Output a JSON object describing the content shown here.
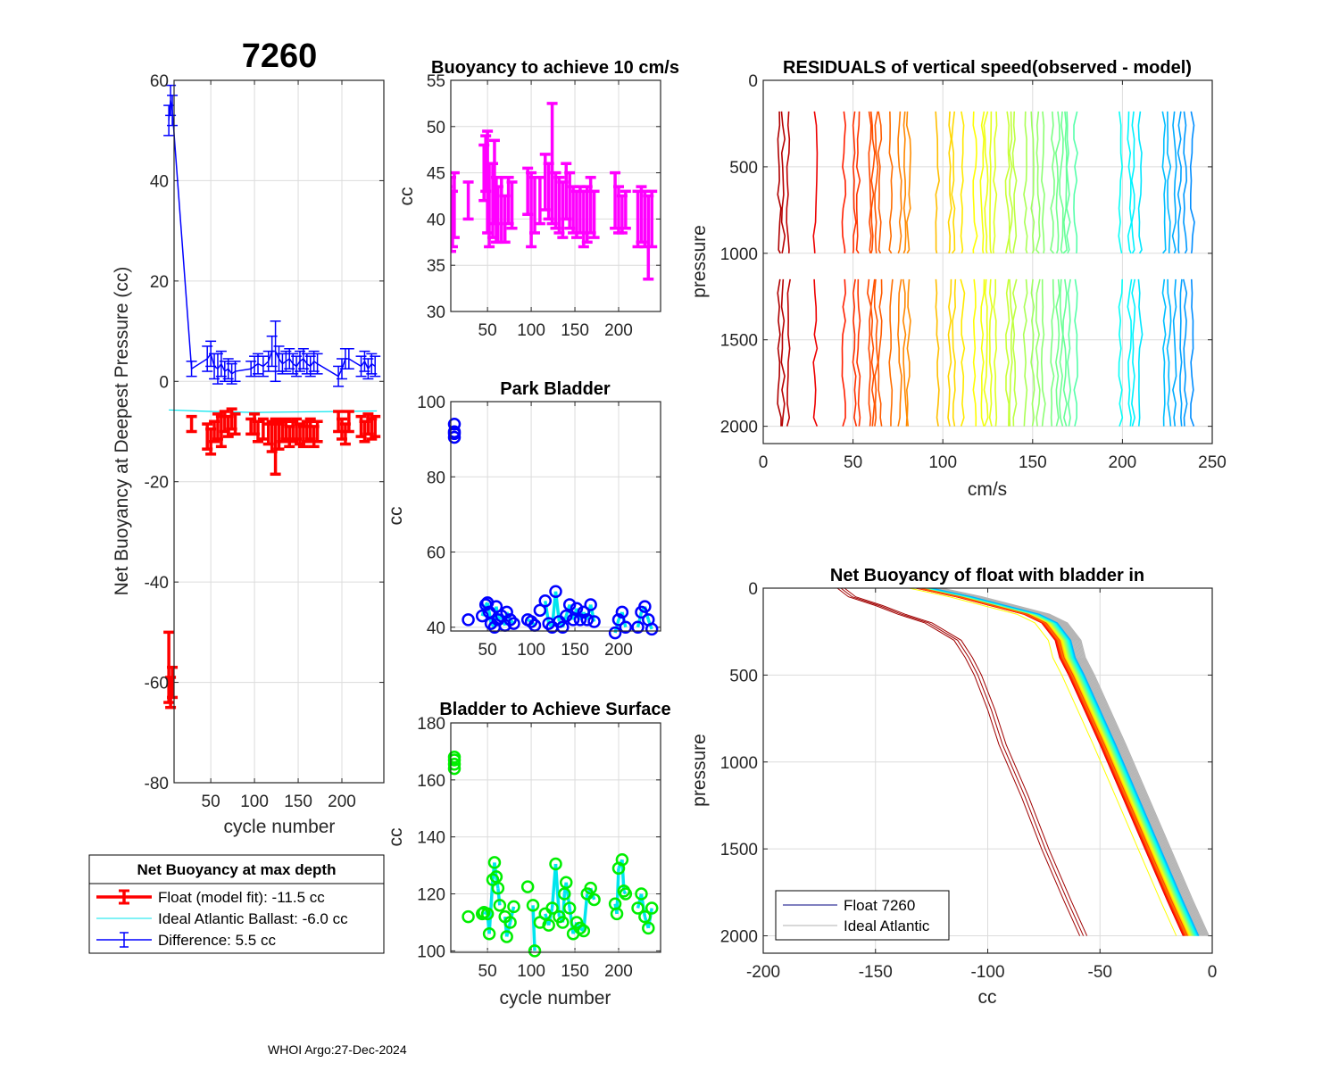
{
  "figure": {
    "title": "7260",
    "footer": "WHOI Argo:27-Dec-2024"
  },
  "chart_data": [
    {
      "id": "net_buoyancy_deepest",
      "type": "errorbar-line",
      "title": "7260",
      "xlabel": "cycle number",
      "ylabel": "Net Buoyancy at Deepest Pressure (cc)",
      "xlim": [
        8,
        248
      ],
      "ylim": [
        -80,
        60
      ],
      "xticks": [
        50,
        100,
        150,
        200
      ],
      "yticks": [
        -80,
        -60,
        -40,
        -20,
        0,
        20,
        40,
        60
      ],
      "grid": true,
      "legend": {
        "title": "Net Buoyancy at max depth",
        "placement": "below",
        "entries": [
          {
            "label": "Float (model fit): -11.5 cc",
            "color": "#ff0000"
          },
          {
            "label": "Ideal Atlantic Ballast:  -6.0 cc",
            "color": "#00e5ee"
          },
          {
            "label": "Difference:   5.5 cc",
            "color": "#0000ff"
          }
        ]
      },
      "series": [
        {
          "name": "Float (model fit)",
          "color": "#ff0000",
          "x": [
            2,
            4,
            6,
            28,
            46,
            50,
            54,
            58,
            62,
            66,
            70,
            74,
            78,
            96,
            100,
            104,
            110,
            116,
            120,
            124,
            128,
            132,
            136,
            140,
            144,
            148,
            152,
            156,
            160,
            164,
            168,
            172,
            196,
            200,
            204,
            208,
            222,
            226,
            230,
            234,
            238
          ],
          "y": [
            -57,
            -62,
            -60,
            -8.5,
            -11,
            -12,
            -10,
            -9,
            -10,
            -8,
            -9,
            -7.5,
            -8.5,
            -9,
            -8.5,
            -10,
            -9.5,
            -10.5,
            -11,
            -13,
            -11,
            -10,
            -9.5,
            -11,
            -10,
            -9.5,
            -10.5,
            -11,
            -10,
            -9.5,
            -11,
            -10,
            -8,
            -9.5,
            -10.5,
            -8,
            -9,
            -10,
            -8.5,
            -9.5,
            -9
          ],
          "err": [
            7,
            3,
            3,
            1.5,
            2.5,
            2.5,
            2,
            2.5,
            3,
            2,
            2,
            2,
            2,
            1.5,
            2,
            2,
            2,
            2,
            3,
            5.5,
            2.5,
            2,
            2,
            2,
            2,
            2,
            2,
            2,
            2,
            2,
            2,
            2,
            2,
            2,
            2,
            2,
            2,
            2,
            2,
            2,
            2
          ]
        },
        {
          "name": "Ideal Atlantic Ballast",
          "color": "#00e5ee",
          "x": [
            2,
            50,
            100,
            150,
            200,
            240
          ],
          "y": [
            -5.7,
            -6.0,
            -6.2,
            -6.1,
            -6.0,
            -5.9
          ]
        },
        {
          "name": "Difference",
          "color": "#0000ff",
          "x": [
            2,
            4,
            6,
            28,
            46,
            50,
            54,
            58,
            62,
            66,
            70,
            74,
            78,
            96,
            100,
            104,
            110,
            116,
            120,
            124,
            128,
            132,
            136,
            140,
            144,
            148,
            152,
            156,
            160,
            164,
            168,
            172,
            196,
            200,
            204,
            208,
            222,
            226,
            230,
            234,
            238
          ],
          "y": [
            52,
            56,
            54,
            2.5,
            4.5,
            5.5,
            3,
            2.5,
            3.5,
            2,
            2.5,
            1.5,
            2,
            2.5,
            3,
            3.5,
            3,
            4,
            6,
            6,
            4.5,
            3.5,
            4,
            4.5,
            3.5,
            3,
            4,
            4.5,
            3.5,
            3,
            4,
            3.5,
            1,
            2.5,
            4.5,
            4.5,
            3,
            4,
            2.5,
            3.5,
            3
          ],
          "err": [
            3,
            3,
            3,
            1.5,
            2.5,
            2.5,
            2.5,
            3,
            2.5,
            2,
            2,
            2,
            2,
            1.5,
            2,
            2,
            2,
            2,
            3,
            6,
            2.5,
            2,
            2,
            2,
            2,
            2,
            2,
            2,
            2,
            2,
            2,
            2,
            2,
            2,
            2,
            2,
            2,
            2,
            2,
            2,
            2
          ]
        }
      ]
    },
    {
      "id": "buoyancy_10cms",
      "type": "errorbar",
      "title": "Buoyancy to achieve 10 cm/s",
      "xlabel": "",
      "ylabel": "cc",
      "xlim": [
        8,
        248
      ],
      "ylim": [
        30,
        55
      ],
      "xticks": [
        50,
        100,
        150,
        200
      ],
      "yticks": [
        30,
        35,
        40,
        45,
        50,
        55
      ],
      "grid": true,
      "color": "#ff00ff",
      "x": [
        4,
        8,
        10,
        12,
        28,
        46,
        48,
        50,
        52,
        56,
        58,
        60,
        62,
        66,
        70,
        74,
        78,
        96,
        100,
        104,
        110,
        116,
        120,
        124,
        128,
        132,
        136,
        140,
        144,
        148,
        152,
        156,
        160,
        164,
        168,
        172,
        196,
        200,
        204,
        208,
        222,
        226,
        230,
        234,
        238
      ],
      "y": [
        40,
        40.5,
        40,
        41.5,
        42,
        45,
        46,
        44,
        41.5,
        42,
        44,
        41,
        40.5,
        41,
        40,
        42,
        41.5,
        43,
        41,
        41.5,
        42,
        44,
        43,
        46,
        42,
        41.5,
        41,
        43,
        42,
        41,
        40.5,
        41,
        40,
        40.5,
        41.5,
        40.5,
        42,
        41,
        40.5,
        41,
        40,
        40.5,
        40,
        38,
        40
      ],
      "err": [
        3.5,
        4,
        3,
        3.5,
        2,
        3,
        3,
        5.5,
        4.5,
        4,
        4.5,
        3.5,
        3,
        3.5,
        2.5,
        2.5,
        2.5,
        2.5,
        4,
        3,
        2.5,
        3,
        3,
        6.5,
        3,
        3,
        3,
        3,
        3,
        2.5,
        2.5,
        2.5,
        3,
        3,
        3,
        2.5,
        3,
        2.5,
        2,
        2,
        3,
        3,
        3,
        4.5,
        3
      ]
    },
    {
      "id": "park_bladder",
      "type": "scatter",
      "title": "Park Bladder",
      "xlabel": "",
      "ylabel": "cc",
      "xlim": [
        8,
        248
      ],
      "ylim": [
        39,
        100
      ],
      "xticks": [
        50,
        100,
        150,
        200
      ],
      "yticks": [
        40,
        60,
        80,
        100
      ],
      "grid": true,
      "marker_color": "#0000ff",
      "line_color": "#00e5ee",
      "x": [
        2,
        4,
        6,
        8,
        28,
        44,
        48,
        50,
        52,
        54,
        58,
        60,
        62,
        66,
        70,
        72,
        76,
        80,
        96,
        100,
        104,
        110,
        116,
        120,
        124,
        128,
        132,
        136,
        140,
        144,
        148,
        152,
        156,
        160,
        164,
        168,
        172,
        196,
        200,
        204,
        208,
        222,
        226,
        230,
        234,
        238
      ],
      "y": [
        94,
        92,
        91.5,
        90.5,
        42,
        43,
        46,
        46.5,
        44,
        41,
        40,
        45.5,
        42,
        43,
        40.5,
        44,
        42,
        41,
        42,
        41.5,
        40.5,
        44.5,
        47,
        41,
        40,
        49.5,
        41.5,
        40,
        43,
        46,
        42,
        45,
        42,
        44,
        42,
        46,
        41.5,
        38.5,
        42,
        44,
        40,
        40,
        44,
        45.5,
        42,
        39.5
      ]
    },
    {
      "id": "bladder_surface",
      "type": "scatter",
      "title": "Bladder to Achieve Surface",
      "xlabel": "cycle number",
      "ylabel": "cc",
      "xlim": [
        8,
        248
      ],
      "ylim": [
        99.5,
        180
      ],
      "xticks": [
        50,
        100,
        150,
        200
      ],
      "yticks": [
        100,
        120,
        140,
        160,
        180
      ],
      "grid": true,
      "marker_color": "#00ee00",
      "line_color": "#00e5ee",
      "x": [
        2,
        4,
        6,
        8,
        28,
        44,
        46,
        50,
        52,
        56,
        58,
        60,
        62,
        64,
        70,
        72,
        76,
        80,
        96,
        102,
        104,
        110,
        116,
        120,
        124,
        128,
        132,
        136,
        138,
        140,
        144,
        148,
        152,
        156,
        160,
        164,
        168,
        172,
        196,
        198,
        200,
        204,
        206,
        208,
        222,
        226,
        230,
        234,
        238
      ],
      "y": [
        168,
        167,
        165.5,
        164,
        112,
        113,
        113.5,
        113,
        106,
        125,
        131,
        126,
        122,
        116,
        112,
        105,
        110,
        115.5,
        122.5,
        116,
        100,
        110,
        113,
        109,
        115,
        130.5,
        112,
        110,
        120,
        124,
        115,
        106,
        110,
        108,
        107,
        120,
        122,
        118,
        116.5,
        113,
        129,
        132,
        121,
        120,
        115,
        120,
        112,
        108,
        115
      ]
    },
    {
      "id": "residuals_vertical_speed",
      "type": "line",
      "title": "RESIDUALS of vertical speed(observed - model)",
      "xlabel": "cm/s",
      "ylabel": "pressure",
      "xlim": [
        0,
        250
      ],
      "ylim": [
        0,
        2100
      ],
      "y_reversed": true,
      "xticks": [
        0,
        50,
        100,
        150,
        200,
        250
      ],
      "yticks": [
        0,
        500,
        1000,
        1500,
        2000
      ],
      "grid": true,
      "colormap": "jet",
      "segments": [
        {
          "pressure_top": 180,
          "pressure_bottom": 1000
        },
        {
          "pressure_top": 1150,
          "pressure_bottom": 2000
        }
      ],
      "profile_offsets_cm_s": [
        9,
        11,
        14,
        29,
        45,
        51,
        53,
        59,
        61,
        63,
        65,
        71,
        76,
        79,
        81,
        97,
        104,
        106,
        111,
        118,
        122,
        124,
        127,
        129,
        136,
        138,
        140,
        146,
        150,
        153,
        156,
        161,
        164,
        166,
        168,
        170,
        174,
        199,
        204,
        206,
        210,
        223,
        226,
        229,
        232,
        235,
        239
      ]
    },
    {
      "id": "net_buoyancy_bladder_in",
      "type": "line",
      "title": "Net Buoyancy of float with bladder in",
      "xlabel": "cc",
      "ylabel": "pressure",
      "xlim": [
        -200,
        0
      ],
      "ylim": [
        0,
        2100
      ],
      "y_reversed": true,
      "xticks": [
        -200,
        -150,
        -100,
        -50,
        0
      ],
      "yticks": [
        0,
        500,
        1000,
        1500,
        2000
      ],
      "grid": true,
      "legend": {
        "placement": "bottom-left",
        "entries": [
          {
            "label": "Float 7260",
            "color": "#000080"
          },
          {
            "label": "Ideal Atlantic",
            "color": "#b0b0b0"
          }
        ]
      },
      "profile_shape": {
        "pressure": [
          0,
          50,
          100,
          150,
          200,
          300,
          400,
          500,
          700,
          900,
          1200,
          1500,
          1800,
          2000
        ],
        "cc_float_early": [
          -167,
          -162,
          -150,
          -140,
          -128,
          -115,
          -110,
          -106,
          -100,
          -95,
          -85,
          -76,
          -66,
          -59
        ],
        "cc_float_typical": [
          -128,
          -110,
          -95,
          -80,
          -72,
          -66,
          -64,
          -60,
          -53,
          -46,
          -36,
          -26,
          -16,
          -9
        ]
      }
    }
  ]
}
